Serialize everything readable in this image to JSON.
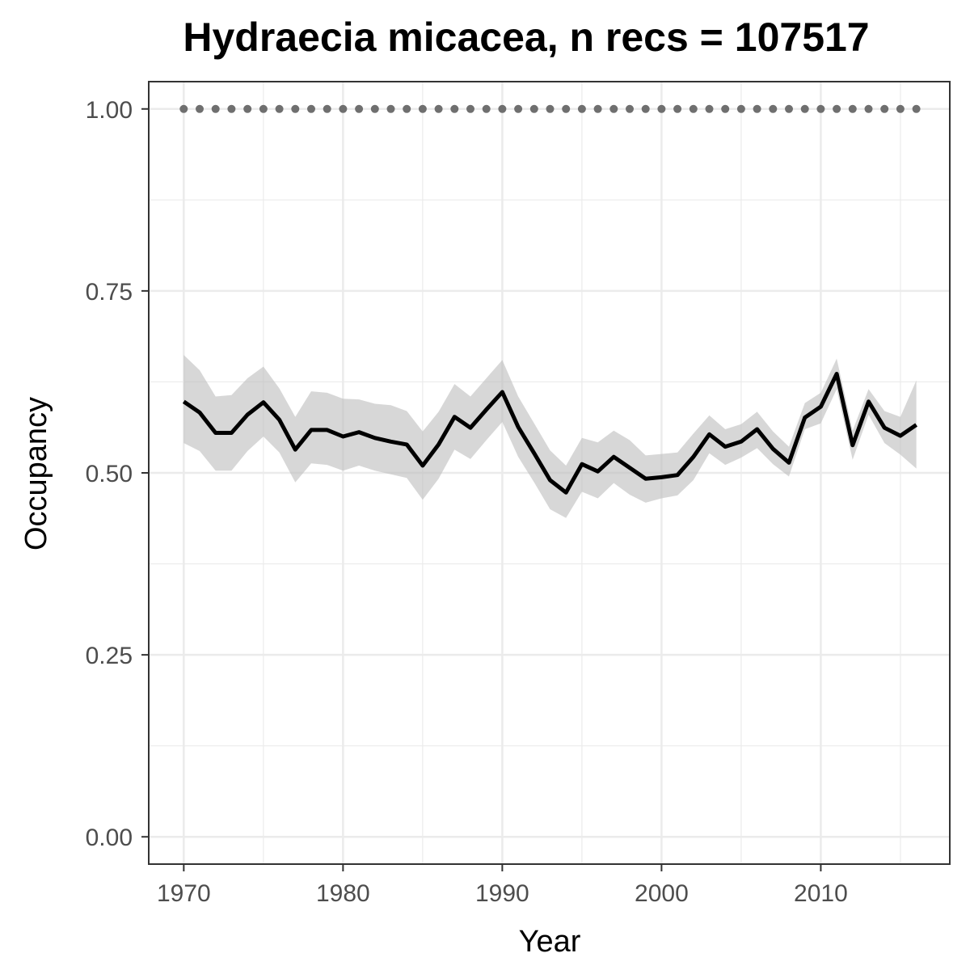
{
  "chart_data": {
    "type": "line",
    "title": "Hydraecia micacea, n recs = 107517",
    "xlabel": "Year",
    "ylabel": "Occupancy",
    "xlim": [
      1967.8,
      2018.1
    ],
    "ylim": [
      -0.0375,
      1.0375
    ],
    "x_ticks": [
      1970,
      1980,
      1990,
      2000,
      2010
    ],
    "x_tick_labels": [
      "1970",
      "1980",
      "1990",
      "2000",
      "2010"
    ],
    "y_ticks": [
      0,
      0.25,
      0.5,
      0.75,
      1.0
    ],
    "y_tick_labels": [
      "0.00",
      "0.25",
      "0.50",
      "0.75",
      "1.00"
    ],
    "grid": true,
    "colors": {
      "line": "#000000",
      "ribbon": "#bdbdbd",
      "dots": "#6f6f6f",
      "grid": "#ebebeb",
      "border": "#333333"
    },
    "x": [
      1970,
      1971,
      1972,
      1973,
      1974,
      1975,
      1976,
      1977,
      1978,
      1979,
      1980,
      1981,
      1982,
      1983,
      1984,
      1985,
      1986,
      1987,
      1988,
      1989,
      1990,
      1991,
      1992,
      1993,
      1994,
      1995,
      1996,
      1997,
      1998,
      1999,
      2000,
      2001,
      2002,
      2003,
      2004,
      2005,
      2006,
      2007,
      2008,
      2009,
      2010,
      2011,
      2012,
      2013,
      2014,
      2015,
      2016
    ],
    "series": [
      {
        "role": "mean",
        "values": [
          0.598,
          0.583,
          0.555,
          0.555,
          0.58,
          0.597,
          0.573,
          0.532,
          0.559,
          0.559,
          0.55,
          0.556,
          0.548,
          0.543,
          0.539,
          0.51,
          0.539,
          0.577,
          0.562,
          0.587,
          0.611,
          0.563,
          0.527,
          0.49,
          0.473,
          0.512,
          0.502,
          0.522,
          0.507,
          0.492,
          0.494,
          0.497,
          0.522,
          0.553,
          0.536,
          0.543,
          0.56,
          0.533,
          0.514,
          0.576,
          0.591,
          0.636,
          0.538,
          0.598,
          0.562,
          0.551,
          0.566
        ]
      },
      {
        "role": "lower",
        "values": [
          0.541,
          0.53,
          0.503,
          0.503,
          0.53,
          0.55,
          0.528,
          0.487,
          0.513,
          0.511,
          0.503,
          0.51,
          0.503,
          0.498,
          0.493,
          0.463,
          0.492,
          0.532,
          0.519,
          0.545,
          0.57,
          0.522,
          0.487,
          0.45,
          0.438,
          0.474,
          0.465,
          0.486,
          0.47,
          0.459,
          0.465,
          0.469,
          0.49,
          0.527,
          0.511,
          0.521,
          0.534,
          0.512,
          0.495,
          0.56,
          0.568,
          0.615,
          0.518,
          0.58,
          0.541,
          0.525,
          0.506
        ]
      },
      {
        "role": "upper",
        "values": [
          0.662,
          0.641,
          0.605,
          0.607,
          0.63,
          0.646,
          0.616,
          0.577,
          0.612,
          0.61,
          0.602,
          0.601,
          0.595,
          0.593,
          0.585,
          0.557,
          0.584,
          0.622,
          0.605,
          0.63,
          0.655,
          0.605,
          0.568,
          0.531,
          0.51,
          0.548,
          0.542,
          0.558,
          0.545,
          0.524,
          0.526,
          0.528,
          0.554,
          0.579,
          0.56,
          0.567,
          0.584,
          0.557,
          0.536,
          0.596,
          0.61,
          0.657,
          0.558,
          0.615,
          0.585,
          0.577,
          0.627
        ]
      },
      {
        "role": "dots",
        "values": [
          1,
          1,
          1,
          1,
          1,
          1,
          1,
          1,
          1,
          1,
          1,
          1,
          1,
          1,
          1,
          1,
          1,
          1,
          1,
          1,
          1,
          1,
          1,
          1,
          1,
          1,
          1,
          1,
          1,
          1,
          1,
          1,
          1,
          1,
          1,
          1,
          1,
          1,
          1,
          1,
          1,
          1,
          1,
          1,
          1,
          1,
          1
        ]
      }
    ]
  }
}
